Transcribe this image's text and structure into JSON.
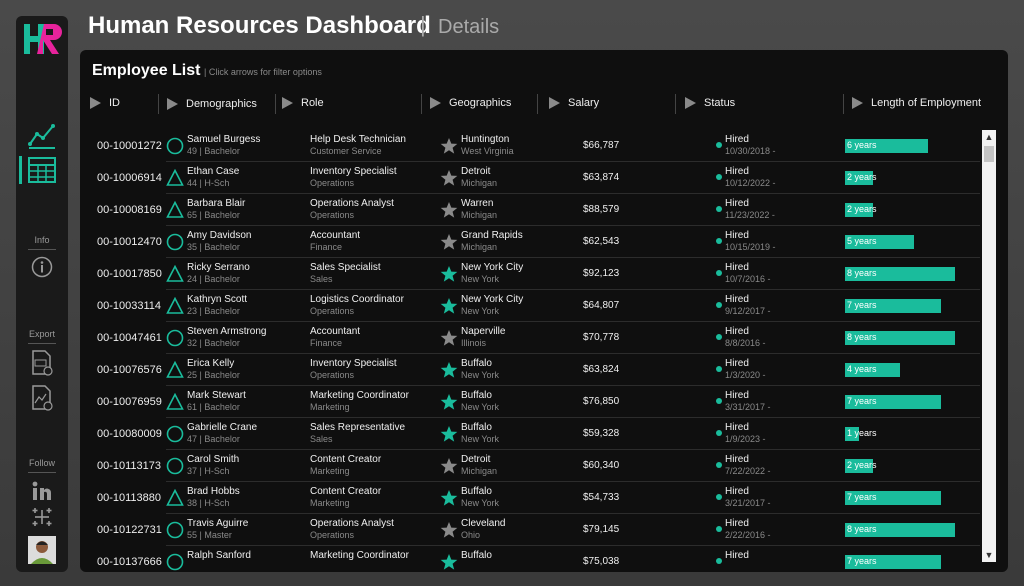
{
  "header": {
    "title": "Human Resources Dashboard",
    "separator": "|",
    "subtitle": "Details"
  },
  "sidebar": {
    "logo_text": "HR",
    "nav_icons": [
      "line-chart-icon",
      "table-grid-icon"
    ],
    "info_label": "Info",
    "export_label": "Export",
    "follow_label": "Follow",
    "accent_color": "#1abc9c"
  },
  "panel": {
    "title": "Employee List",
    "hint": "| Click arrows for filter options"
  },
  "columns": [
    "ID",
    "Demographics",
    "Role",
    "Geographics",
    "Salary",
    "Status",
    "Length of Employment"
  ],
  "employees": [
    {
      "id": "00-10001272",
      "name": "Samuel Burgess",
      "demo": "49 | Bachelor",
      "shape": "circle",
      "role": "Help Desk Technician",
      "dept": "Customer Service",
      "city": "Huntington",
      "state": "West Virginia",
      "star": "gray",
      "salary": "$66,787",
      "status": "Hired",
      "date": "10/30/2018 -",
      "tenure": "6 years",
      "years": 6
    },
    {
      "id": "00-10006914",
      "name": "Ethan Case",
      "demo": "44 | H-Sch",
      "shape": "triangle",
      "role": "Inventory Specialist",
      "dept": "Operations",
      "city": "Detroit",
      "state": "Michigan",
      "star": "gray",
      "salary": "$63,874",
      "status": "Hired",
      "date": "10/12/2022 -",
      "tenure": "2 years",
      "years": 2
    },
    {
      "id": "00-10008169",
      "name": "Barbara Blair",
      "demo": "65 | Bachelor",
      "shape": "triangle",
      "role": "Operations Analyst",
      "dept": "Operations",
      "city": "Warren",
      "state": "Michigan",
      "star": "gray",
      "salary": "$88,579",
      "status": "Hired",
      "date": "11/23/2022 -",
      "tenure": "2 years",
      "years": 2
    },
    {
      "id": "00-10012470",
      "name": "Amy Davidson",
      "demo": "35 | Bachelor",
      "shape": "circle",
      "role": "Accountant",
      "dept": "Finance",
      "city": "Grand Rapids",
      "state": "Michigan",
      "star": "gray",
      "salary": "$62,543",
      "status": "Hired",
      "date": "10/15/2019 -",
      "tenure": "5 years",
      "years": 5
    },
    {
      "id": "00-10017850",
      "name": "Ricky Serrano",
      "demo": "24 | Bachelor",
      "shape": "triangle",
      "role": "Sales Specialist",
      "dept": "Sales",
      "city": "New York City",
      "state": "New York",
      "star": "teal",
      "salary": "$92,123",
      "status": "Hired",
      "date": "10/7/2016 -",
      "tenure": "8 years",
      "years": 8
    },
    {
      "id": "00-10033114",
      "name": "Kathryn Scott",
      "demo": "23 | Bachelor",
      "shape": "triangle",
      "role": "Logistics Coordinator",
      "dept": "Operations",
      "city": "New York City",
      "state": "New York",
      "star": "teal",
      "salary": "$64,807",
      "status": "Hired",
      "date": "9/12/2017 -",
      "tenure": "7 years",
      "years": 7
    },
    {
      "id": "00-10047461",
      "name": "Steven Armstrong",
      "demo": "32 | Bachelor",
      "shape": "circle",
      "role": "Accountant",
      "dept": "Finance",
      "city": "Naperville",
      "state": "Illinois",
      "star": "gray",
      "salary": "$70,778",
      "status": "Hired",
      "date": "8/8/2016 -",
      "tenure": "8 years",
      "years": 8
    },
    {
      "id": "00-10076576",
      "name": "Erica Kelly",
      "demo": "25 | Bachelor",
      "shape": "triangle",
      "role": "Inventory Specialist",
      "dept": "Operations",
      "city": "Buffalo",
      "state": "New York",
      "star": "teal",
      "salary": "$63,824",
      "status": "Hired",
      "date": "1/3/2020 -",
      "tenure": "4 years",
      "years": 4
    },
    {
      "id": "00-10076959",
      "name": "Mark Stewart",
      "demo": "61 | Bachelor",
      "shape": "triangle",
      "role": "Marketing Coordinator",
      "dept": "Marketing",
      "city": "Buffalo",
      "state": "New York",
      "star": "teal",
      "salary": "$76,850",
      "status": "Hired",
      "date": "3/31/2017 -",
      "tenure": "7 years",
      "years": 7
    },
    {
      "id": "00-10080009",
      "name": "Gabrielle Crane",
      "demo": "47 | Bachelor",
      "shape": "circle",
      "role": "Sales Representative",
      "dept": "Sales",
      "city": "Buffalo",
      "state": "New York",
      "star": "teal",
      "salary": "$59,328",
      "status": "Hired",
      "date": "1/9/2023 -",
      "tenure": "1 years",
      "years": 1
    },
    {
      "id": "00-10113173",
      "name": "Carol Smith",
      "demo": "37 | H-Sch",
      "shape": "circle",
      "role": "Content Creator",
      "dept": "Marketing",
      "city": "Detroit",
      "state": "Michigan",
      "star": "gray",
      "salary": "$60,340",
      "status": "Hired",
      "date": "7/22/2022 -",
      "tenure": "2 years",
      "years": 2
    },
    {
      "id": "00-10113880",
      "name": "Brad Hobbs",
      "demo": "38 | H-Sch",
      "shape": "triangle",
      "role": "Content Creator",
      "dept": "Marketing",
      "city": "Buffalo",
      "state": "New York",
      "star": "teal",
      "salary": "$54,733",
      "status": "Hired",
      "date": "3/21/2017 -",
      "tenure": "7 years",
      "years": 7
    },
    {
      "id": "00-10122731",
      "name": "Travis Aguirre",
      "demo": "55 | Master",
      "shape": "circle",
      "role": "Operations Analyst",
      "dept": "Operations",
      "city": "Cleveland",
      "state": "Ohio",
      "star": "gray",
      "salary": "$79,145",
      "status": "Hired",
      "date": "2/22/2016 -",
      "tenure": "8 years",
      "years": 8
    },
    {
      "id": "00-10137666",
      "name": "Ralph Sanford",
      "demo": "",
      "shape": "circle",
      "role": "Marketing Coordinator",
      "dept": "",
      "city": "Buffalo",
      "state": "",
      "star": "teal",
      "salary": "$75,038",
      "status": "Hired",
      "date": "",
      "tenure": "7 years",
      "years": 7
    }
  ]
}
